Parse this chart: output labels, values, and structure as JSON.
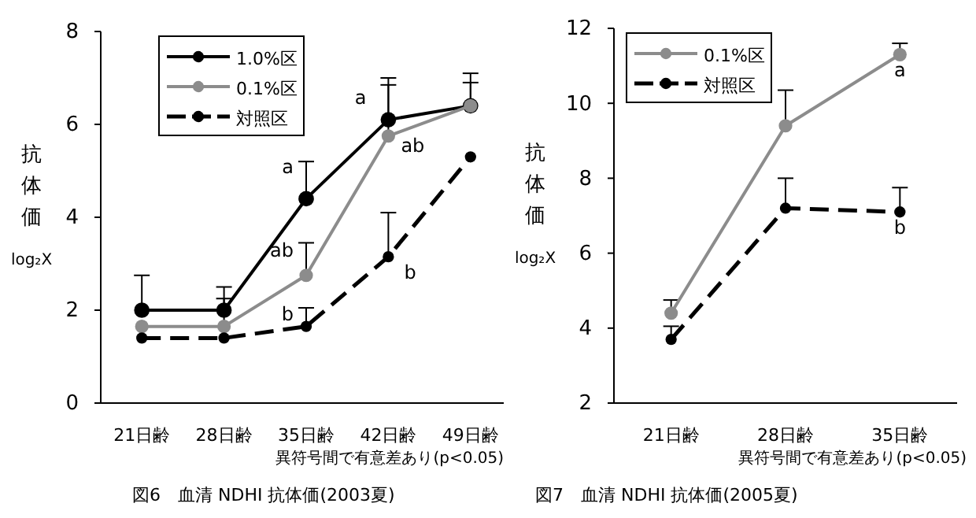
{
  "chart_data": [
    {
      "type": "line",
      "title": "図6　血清 NDHI 抗体価(2003夏)",
      "ylabel": "抗体価 log₂X",
      "categories": [
        "21日齢",
        "28日齢",
        "35日齢",
        "42日齢",
        "49日齢"
      ],
      "ylim": [
        0,
        8
      ],
      "yticks": [
        0,
        2,
        4,
        6,
        8
      ],
      "legend": "top left",
      "marker": "circle",
      "grid": false,
      "series": [
        {
          "name": "1.0%区",
          "color": "#000000",
          "line_style": "solid",
          "values": [
            2.0,
            2.0,
            4.4,
            6.1,
            6.4
          ],
          "errors": [
            [
              2.0,
              2.75
            ],
            [
              2.0,
              2.5
            ],
            [
              4.4,
              5.2
            ],
            [
              6.1,
              7.0
            ],
            [
              6.4,
              7.1
            ]
          ]
        },
        {
          "name": "0.1%区",
          "color": "#8c8c8c",
          "line_style": "solid",
          "values": [
            1.65,
            1.65,
            2.75,
            5.75,
            6.4
          ],
          "errors": [
            null,
            [
              1.65,
              2.25
            ],
            [
              2.75,
              3.45
            ],
            [
              5.75,
              6.85
            ],
            [
              6.4,
              6.9
            ]
          ]
        },
        {
          "name": "対照区",
          "color": "#000000",
          "line_style": "dashed",
          "values": [
            1.4,
            1.4,
            1.65,
            3.15,
            5.3
          ],
          "errors": [
            null,
            null,
            [
              1.65,
              2.05
            ],
            [
              3.15,
              4.1
            ],
            null
          ]
        }
      ],
      "annotations": [
        {
          "text": "a",
          "x": "35日齢",
          "y": 4.4
        },
        {
          "text": "ab",
          "x": "35日齢",
          "y": 2.75
        },
        {
          "text": "b",
          "x": "35日齢",
          "y": 1.65
        },
        {
          "text": "a",
          "x": "42日齢",
          "y": 6.1
        },
        {
          "text": "ab",
          "x": "42日齢",
          "y": 5.75
        },
        {
          "text": "b",
          "x": "42日齢",
          "y": 3.15
        },
        "異符号間で有意差あり(p<0.05)"
      ]
    },
    {
      "type": "line",
      "title": "図7　血清 NDHI 抗体価(2005夏)",
      "ylabel": "抗体価 log₂X",
      "categories": [
        "21日齢",
        "28日齢",
        "35日齢"
      ],
      "ylim": [
        2,
        12
      ],
      "yticks": [
        2,
        4,
        6,
        8,
        10,
        12
      ],
      "legend": "top left",
      "marker": "circle",
      "grid": false,
      "series": [
        {
          "name": "0.1%区",
          "color": "#8c8c8c",
          "line_style": "solid",
          "values": [
            4.4,
            9.4,
            11.3
          ],
          "errors": [
            [
              4.4,
              4.75
            ],
            [
              9.4,
              10.35
            ],
            [
              11.3,
              11.6
            ]
          ]
        },
        {
          "name": "対照区",
          "color": "#000000",
          "line_style": "dashed",
          "values": [
            3.7,
            7.2,
            7.1
          ],
          "errors": [
            [
              3.7,
              4.05
            ],
            [
              7.2,
              8.0
            ],
            [
              7.1,
              7.75
            ]
          ]
        }
      ],
      "annotations": [
        {
          "text": "a",
          "x": "35日齢",
          "y": 11.3
        },
        {
          "text": "b",
          "x": "35日齢",
          "y": 7.1
        },
        "異符号間で有意差あり(p<0.05)"
      ]
    }
  ]
}
